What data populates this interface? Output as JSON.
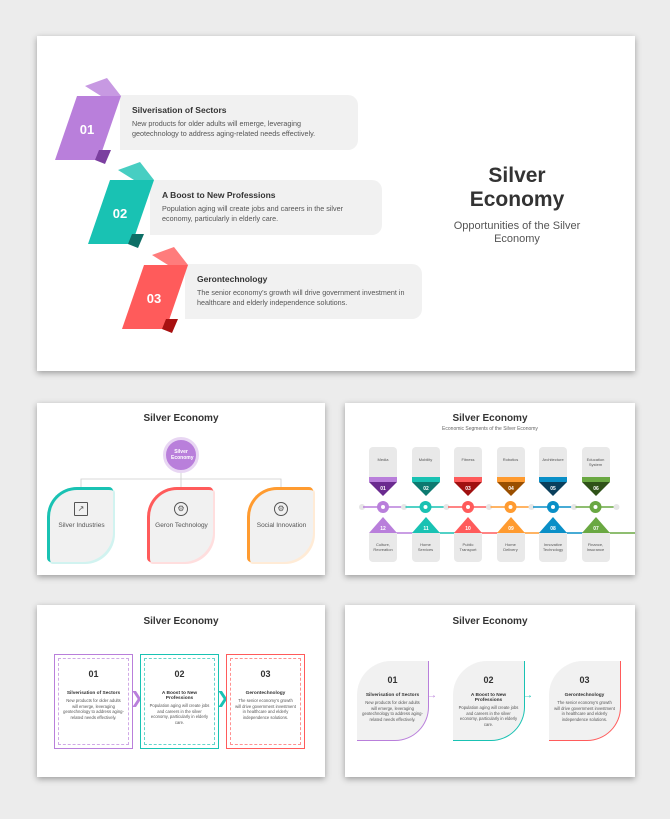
{
  "colors": {
    "purple": "#b97fdb",
    "teal": "#19c2b3",
    "red": "#ff5b5b",
    "orange": "#ff9b30",
    "blue": "#0a8fc7",
    "green": "#6aa842"
  },
  "slide1": {
    "title": "Silver Economy",
    "subtitle": "Opportunities of the Silver Economy",
    "cards": [
      {
        "num": "01",
        "title": "Silverisation of Sectors",
        "text": "New products for older adults will emerge, leveraging geotechnology to address aging-related needs effectively.",
        "color": "#b97fdb",
        "dark": "#7b3fa0"
      },
      {
        "num": "02",
        "title": "A Boost to New Professions",
        "text": "Population aging will create jobs and careers in the silver economy, particularly in elderly care.",
        "color": "#19c2b3",
        "dark": "#0d6f66"
      },
      {
        "num": "03",
        "title": "Gerontechnology",
        "text": "The senior economy's growth will drive government investment in healthcare and elderly independence solutions.",
        "color": "#ff5b5b",
        "dark": "#a81010"
      }
    ]
  },
  "slide2": {
    "title": "Silver Economy",
    "center": "Silver Economy",
    "items": [
      {
        "label": "Silver Industries",
        "icon": "chart-icon",
        "color": "#19c2b3"
      },
      {
        "label": "Geron Technology",
        "icon": "gear-brain-icon",
        "color": "#ff5b5b"
      },
      {
        "label": "Social Innovation",
        "icon": "lightbulb-gear-icon",
        "color": "#ff9b30"
      }
    ]
  },
  "slide3": {
    "title": "Silver Economy",
    "subtitle": "Economic Segments of the Silver Economy",
    "top": [
      {
        "num": "01",
        "label": "Media",
        "color": "#b97fdb",
        "dark": "#6a2a8f"
      },
      {
        "num": "02",
        "label": "Mobility",
        "color": "#19c2b3",
        "dark": "#0d7a70"
      },
      {
        "num": "03",
        "label": "Fitness",
        "color": "#ff5b5b",
        "dark": "#a01010"
      },
      {
        "num": "04",
        "label": "Robotics",
        "color": "#ff9b30",
        "dark": "#9a4f00"
      },
      {
        "num": "05",
        "label": "Architecture",
        "color": "#0a8fc7",
        "dark": "#0a3f5c"
      },
      {
        "num": "06",
        "label": "Education System",
        "color": "#6aa842",
        "dark": "#2f5218"
      }
    ],
    "bottom": [
      {
        "num": "12",
        "label": "Culture, Recreation",
        "color": "#b97fdb"
      },
      {
        "num": "11",
        "label": "Home Services",
        "color": "#19c2b3"
      },
      {
        "num": "10",
        "label": "Public Transport",
        "color": "#ff5b5b"
      },
      {
        "num": "09",
        "label": "Home Delivery",
        "color": "#ff9b30"
      },
      {
        "num": "08",
        "label": "Innovative Technology",
        "color": "#0a8fc7"
      },
      {
        "num": "07",
        "label": "Finance, Insurance",
        "color": "#6aa842"
      }
    ]
  },
  "slide4": {
    "title": "Silver Economy",
    "cards": [
      {
        "num": "01",
        "title": "Silverisation of Sectors",
        "text": "New products for older adults will emerge, leveraging geotechnology to address aging-related needs effectively.",
        "color": "#b97fdb"
      },
      {
        "num": "02",
        "title": "A Boost to New Professions",
        "text": "Population aging will create jobs and careers in the silver economy, particularly in elderly care.",
        "color": "#19c2b3"
      },
      {
        "num": "03",
        "title": "Gerontechnology",
        "text": "The senior economy's growth will drive government investment in healthcare and elderly independence solutions.",
        "color": "#ff5b5b"
      }
    ]
  },
  "slide5": {
    "title": "Silver Economy",
    "cards": [
      {
        "num": "01",
        "title": "Silverisation of Sectors",
        "text": "New products for older adults will emerge, leveraging geotechnology to address aging-related needs effectively.",
        "color": "#b97fdb"
      },
      {
        "num": "02",
        "title": "A Boost to New Professions",
        "text": "Population aging will create jobs and careers in the silver economy, particularly in elderly care.",
        "color": "#19c2b3"
      },
      {
        "num": "03",
        "title": "Gerontechnology",
        "text": "The senior economy's growth will drive government investment in healthcare and elderly independence solutions.",
        "color": "#ff5b5b"
      }
    ]
  }
}
